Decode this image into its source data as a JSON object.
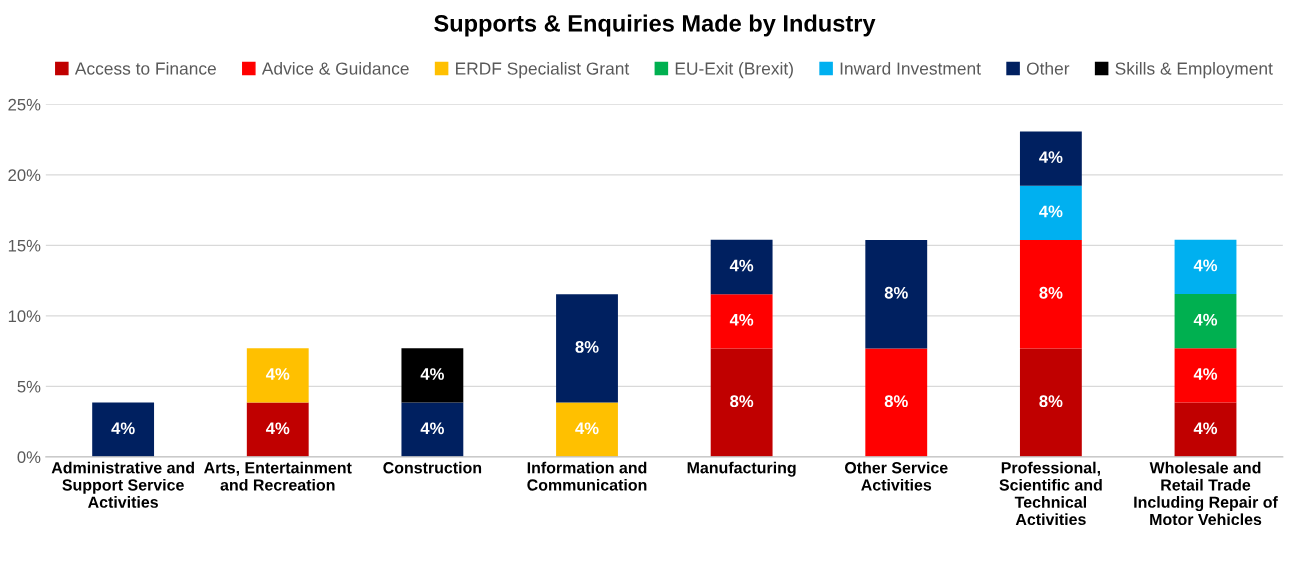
{
  "chart_data": {
    "type": "bar",
    "title": "Supports & Enquiries Made by Industry",
    "categories": [
      "Administrative and Support Service Activities",
      "Arts, Entertainment and Recreation",
      "Construction",
      "Information and Communication",
      "Manufacturing",
      "Other Service Activities",
      "Professional, Scientific and Technical Activities",
      "Wholesale and Retail Trade Including Repair of Motor Vehicles"
    ],
    "stacked": true,
    "series": [
      {
        "name": "Access to Finance",
        "color": "#c00000",
        "values": [
          null,
          3.85,
          null,
          null,
          7.69,
          null,
          7.69,
          3.85
        ],
        "value_labels": [
          null,
          "4%",
          null,
          null,
          "8%",
          null,
          "8%",
          "4%"
        ]
      },
      {
        "name": "Advice & Guidance",
        "color": "#ff0000",
        "values": [
          null,
          null,
          null,
          null,
          3.85,
          7.69,
          7.69,
          3.85
        ],
        "value_labels": [
          null,
          null,
          null,
          null,
          "4%",
          "8%",
          "8%",
          "4%"
        ]
      },
      {
        "name": "ERDF Specialist Grant",
        "color": "#ffc000",
        "values": [
          null,
          3.85,
          null,
          3.85,
          null,
          null,
          null,
          null
        ],
        "value_labels": [
          null,
          "4%",
          null,
          "4%",
          null,
          null,
          null,
          null
        ]
      },
      {
        "name": "EU-Exit (Brexit)",
        "color": "#00b050",
        "values": [
          null,
          null,
          null,
          null,
          null,
          null,
          null,
          3.85
        ],
        "value_labels": [
          null,
          null,
          null,
          null,
          null,
          null,
          null,
          "4%"
        ]
      },
      {
        "name": "Inward Investment",
        "color": "#00b0f0",
        "values": [
          null,
          null,
          null,
          null,
          null,
          null,
          3.85,
          3.85
        ],
        "value_labels": [
          null,
          null,
          null,
          null,
          null,
          null,
          "4%",
          "4%"
        ]
      },
      {
        "name": "Other",
        "color": "#002060",
        "values": [
          3.85,
          null,
          3.85,
          7.69,
          3.85,
          7.69,
          3.85,
          null
        ],
        "value_labels": [
          "4%",
          null,
          "4%",
          "8%",
          "4%",
          "8%",
          "4%",
          null
        ]
      },
      {
        "name": "Skills & Employment",
        "color": "#000000",
        "values": [
          null,
          null,
          3.85,
          null,
          null,
          null,
          null,
          null
        ],
        "value_labels": [
          null,
          null,
          "4%",
          null,
          null,
          null,
          null,
          null
        ]
      }
    ],
    "ylim": [
      0,
      25
    ],
    "yticks": [
      {
        "value": 0,
        "label": "0%"
      },
      {
        "value": 5,
        "label": "5%"
      },
      {
        "value": 10,
        "label": "10%"
      },
      {
        "value": 15,
        "label": "15%"
      },
      {
        "value": 20,
        "label": "20%"
      },
      {
        "value": 25,
        "label": "25%"
      }
    ],
    "grid": "y",
    "legend": "top"
  }
}
